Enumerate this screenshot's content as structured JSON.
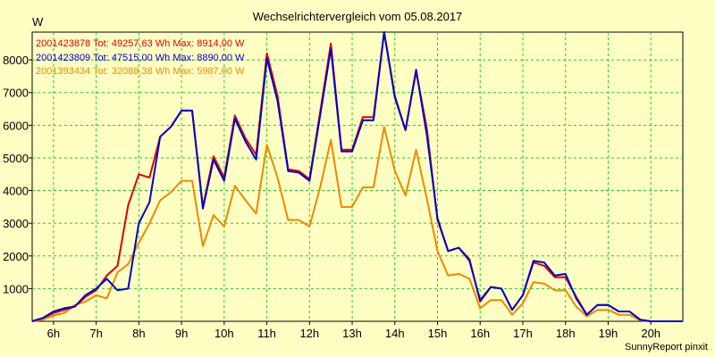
{
  "chart_data": {
    "type": "line",
    "title": "Wechselrichtervergleich vom 05.08.2017",
    "ylabel": "W",
    "xlabel": "",
    "footer": "SunnyReport pinxit",
    "x_axis": {
      "min_hour": 5.5,
      "max_hour": 20.75,
      "ticks": [
        6,
        7,
        8,
        9,
        10,
        11,
        12,
        13,
        14,
        15,
        16,
        17,
        18,
        19,
        20
      ],
      "tick_labels": [
        "6h",
        "7h",
        "8h",
        "9h",
        "10h",
        "11h",
        "12h",
        "13h",
        "14h",
        "15h",
        "16h",
        "17h",
        "18h",
        "19h",
        "20h"
      ]
    },
    "y_axis": {
      "min": 0,
      "max": 8850,
      "ticks": [
        1000,
        2000,
        3000,
        4000,
        5000,
        6000,
        7000,
        8000
      ],
      "tick_labels": [
        "1000",
        "2000",
        "3000",
        "4000",
        "5000",
        "6000",
        "7000",
        "8000"
      ]
    },
    "grid": true,
    "legend_position": "top-left",
    "x_hours": [
      5.5,
      5.75,
      6.0,
      6.25,
      6.5,
      6.75,
      7.0,
      7.25,
      7.5,
      7.75,
      8.0,
      8.25,
      8.5,
      8.75,
      9.0,
      9.25,
      9.5,
      9.75,
      10.0,
      10.25,
      10.5,
      10.75,
      11.0,
      11.25,
      11.5,
      11.75,
      12.0,
      12.25,
      12.5,
      12.75,
      13.0,
      13.25,
      13.5,
      13.75,
      14.0,
      14.25,
      14.5,
      14.75,
      15.0,
      15.25,
      15.5,
      15.75,
      16.0,
      16.25,
      16.5,
      16.75,
      17.0,
      17.25,
      17.5,
      17.75,
      18.0,
      18.25,
      18.5,
      18.75,
      19.0,
      19.25,
      19.5,
      19.75,
      20.0,
      20.25,
      20.5,
      20.75
    ],
    "series": [
      {
        "name": "2001423878 Tot: 49257,63 Wh Max: 8914,00 W",
        "color": "#dd0000",
        "values": [
          0,
          100,
          250,
          350,
          450,
          750,
          950,
          1400,
          1700,
          3550,
          4500,
          4400,
          5650,
          5950,
          6450,
          6450,
          3500,
          5050,
          4400,
          6300,
          5600,
          5100,
          8200,
          6900,
          4650,
          4600,
          4350,
          6400,
          8500,
          5250,
          5250,
          6250,
          6250,
          8850,
          6900,
          5850,
          7650,
          5900,
          3100,
          2150,
          2250,
          1900,
          600,
          1050,
          1000,
          350,
          800,
          1800,
          1700,
          1350,
          1350,
          750,
          200,
          500,
          500,
          300,
          300,
          50,
          0,
          0,
          0,
          0
        ]
      },
      {
        "name": "2001423809 Tot: 47515,00 Wh Max: 8890,00 W",
        "color": "#0000cc",
        "values": [
          0,
          100,
          300,
          400,
          450,
          800,
          1000,
          1300,
          950,
          1000,
          3000,
          3650,
          5650,
          5950,
          6450,
          6450,
          3450,
          4950,
          4300,
          6200,
          5500,
          4950,
          8050,
          6750,
          4600,
          4550,
          4300,
          6300,
          8350,
          5200,
          5200,
          6150,
          6150,
          8850,
          6850,
          5850,
          7700,
          5700,
          3150,
          2150,
          2250,
          1850,
          650,
          1050,
          1000,
          350,
          800,
          1850,
          1800,
          1400,
          1450,
          700,
          200,
          500,
          500,
          300,
          300,
          50,
          0,
          0,
          0,
          0
        ]
      },
      {
        "name": "2001393434 Tot: 32088,38 Wh Max: 5987,00 W",
        "color": "#ee8800",
        "values": [
          0,
          50,
          180,
          250,
          500,
          600,
          800,
          700,
          1500,
          1750,
          2400,
          3000,
          3700,
          3950,
          4300,
          4300,
          2300,
          3250,
          2900,
          4150,
          3700,
          3300,
          5400,
          4400,
          3100,
          3100,
          2900,
          4100,
          5550,
          3500,
          3500,
          4100,
          4100,
          5950,
          4600,
          3850,
          5250,
          3750,
          2150,
          1400,
          1450,
          1300,
          400,
          650,
          650,
          200,
          550,
          1200,
          1150,
          950,
          950,
          450,
          150,
          350,
          350,
          200,
          200,
          30,
          0,
          0,
          0,
          0
        ]
      }
    ]
  }
}
